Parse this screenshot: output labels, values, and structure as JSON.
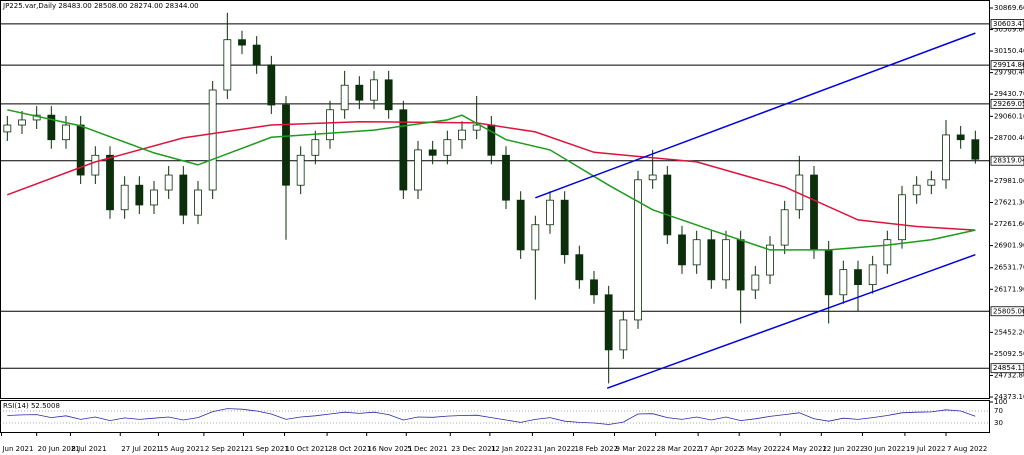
{
  "chart_data": {
    "type": "candlestick",
    "title": "JP225.var,Daily  28483.00 28508.00 28274.00 28344.00",
    "xlim": [
      -0.5,
      67
    ],
    "ylim": [
      24356.4,
      31003.2
    ],
    "yticks": [
      {
        "value": 30869.6,
        "label": "30869.60"
      },
      {
        "value": 30509.8,
        "label": "30509.80"
      },
      {
        "value": 30150.4,
        "label": "30150.40"
      },
      {
        "value": 29790.4,
        "label": "29790.40"
      },
      {
        "value": 29430.7,
        "label": "29430.70"
      },
      {
        "value": 29060.1,
        "label": "29060.10"
      },
      {
        "value": 28700.4,
        "label": "28700.40"
      },
      {
        "value": 27981,
        "label": "27981.00"
      },
      {
        "value": 27621.3,
        "label": "27621.30"
      },
      {
        "value": 27261.6,
        "label": "27261.60"
      },
      {
        "value": 26901.9,
        "label": "26901.90"
      },
      {
        "value": 26531.7,
        "label": "26531.70"
      },
      {
        "value": 26171.9,
        "label": "26171.90"
      },
      {
        "value": 25452.2,
        "label": "25452.20"
      },
      {
        "value": 25092.5,
        "label": "25092.50"
      },
      {
        "value": 24732.8,
        "label": "24732.80"
      },
      {
        "value": 24373.1,
        "label": "24373.10"
      }
    ],
    "xticks": [
      {
        "value": -0.4,
        "label": "Jun 2021"
      },
      {
        "value": 2,
        "label": "20 Jun 2021"
      },
      {
        "value": 4.3,
        "label": "8 Jul 2021"
      },
      {
        "value": 7.7,
        "label": "27 Jul 2021"
      },
      {
        "value": 10.3,
        "label": "15 Aug 2021"
      },
      {
        "value": 13.4,
        "label": "2 Sep 2021"
      },
      {
        "value": 16.1,
        "label": "21 Sep 2021"
      },
      {
        "value": 18.9,
        "label": "10 Oct 2021"
      },
      {
        "value": 21.8,
        "label": "28 Oct 2021"
      },
      {
        "value": 24.5,
        "label": "16 Nov 2021"
      },
      {
        "value": 27.2,
        "label": "5 Dec 2021"
      },
      {
        "value": 30.2,
        "label": "23 Dec 2021"
      },
      {
        "value": 32.9,
        "label": "12 Jan 2022"
      },
      {
        "value": 35.8,
        "label": "31 Jan 2022"
      },
      {
        "value": 38.6,
        "label": "18 Feb 2022"
      },
      {
        "value": 41.4,
        "label": "9 Mar 2022"
      },
      {
        "value": 44.2,
        "label": "28 Mar 2022"
      },
      {
        "value": 47.1,
        "label": "17 Apr 2022"
      },
      {
        "value": 49.9,
        "label": "5 May 2022"
      },
      {
        "value": 52.7,
        "label": "24 May 2022"
      },
      {
        "value": 55.5,
        "label": "12 Jun 2022"
      },
      {
        "value": 58.3,
        "label": "30 Jun 2022"
      },
      {
        "value": 61.2,
        "label": "19 Jul 2022"
      },
      {
        "value": 64,
        "label": "7 Aug 2022"
      }
    ],
    "open": [
      28800,
      28915,
      29000,
      29080,
      28670,
      28915,
      28080,
      28410,
      27500,
      27910,
      27580,
      27830,
      28080,
      27410,
      27830,
      29500,
      30340,
      30250,
      29920,
      29250,
      27910,
      28410,
      28670,
      29170,
      29580,
      29330,
      29670,
      29170,
      27830,
      28500,
      28410,
      28670,
      28830,
      28915,
      28410,
      27660,
      26830,
      27250,
      27660,
      26750,
      26330,
      26080,
      25160,
      25660,
      28000,
      28080,
      27080,
      26580,
      27000,
      26330,
      27000,
      26160,
      26410,
      26910,
      27500,
      28080,
      26830,
      26080,
      26500,
      26250,
      26580,
      27000,
      27750,
      27910,
      28000,
      28750,
      28670
    ],
    "high": [
      29065,
      29150,
      29230,
      29230,
      29065,
      29065,
      28560,
      28560,
      28060,
      28060,
      27980,
      28230,
      28230,
      27980,
      29650,
      30790,
      30490,
      30400,
      30070,
      29400,
      28560,
      28820,
      29320,
      29820,
      29730,
      29820,
      29820,
      29320,
      28650,
      28650,
      28820,
      28980,
      29400,
      29065,
      28560,
      27810,
      27400,
      27810,
      27810,
      26900,
      26480,
      26230,
      25810,
      28150,
      28500,
      28230,
      27230,
      27150,
      27150,
      27150,
      27150,
      26560,
      27060,
      27650,
      28400,
      28230,
      26980,
      26650,
      26650,
      26730,
      27150,
      27900,
      28060,
      28150,
      29000,
      28900,
      28820
    ],
    "low": [
      28650,
      28765,
      28850,
      28520,
      28520,
      27930,
      27930,
      27350,
      27350,
      27430,
      27430,
      27680,
      27260,
      27260,
      27680,
      29350,
      30100,
      29770,
      29100,
      27000,
      27760,
      28260,
      28520,
      29020,
      29180,
      29180,
      29020,
      27680,
      27680,
      28260,
      28260,
      28520,
      28680,
      28260,
      27510,
      26680,
      26000,
      27100,
      26600,
      26180,
      25930,
      24600,
      25010,
      25510,
      27850,
      26930,
      26430,
      26430,
      26180,
      26180,
      25600,
      26010,
      26260,
      26760,
      27350,
      26680,
      25600,
      25930,
      25800,
      26100,
      26430,
      26850,
      27600,
      27760,
      27850,
      28520,
      28270
    ],
    "close": [
      28915,
      29000,
      29080,
      28670,
      28915,
      28080,
      28410,
      27500,
      27910,
      27580,
      27830,
      28080,
      27410,
      27830,
      29500,
      30340,
      30250,
      29920,
      29250,
      27910,
      28410,
      28670,
      29170,
      29580,
      29330,
      29670,
      29170,
      27830,
      28500,
      28410,
      28670,
      28830,
      28915,
      28410,
      27660,
      26830,
      27250,
      27660,
      26750,
      26330,
      26080,
      25160,
      25660,
      28000,
      28080,
      27080,
      26580,
      27000,
      26330,
      27000,
      26160,
      26410,
      26910,
      27500,
      28080,
      26830,
      26080,
      26500,
      26250,
      26580,
      27000,
      27750,
      27910,
      28000,
      28750,
      28670,
      28344
    ],
    "up_color": "#ffffff",
    "down_color": "#0b2e0b",
    "color": "#0b2e0b",
    "levels": [
      {
        "value": 30603.47,
        "label": "30603.47"
      },
      {
        "value": 29914.86,
        "label": "29914.86"
      },
      {
        "value": 29269.05,
        "label": "29269.05"
      },
      {
        "value": 28319.04,
        "label": "28319.04"
      },
      {
        "value": 25805.06,
        "label": "25805.06"
      },
      {
        "value": 24854.13,
        "label": "24854.13"
      }
    ],
    "level_color": "#000000",
    "moving_averages": [
      {
        "color": "#dc143c",
        "x": [
          0,
          6,
          12,
          18,
          24,
          32,
          36,
          40,
          47,
          53,
          58,
          62,
          66
        ],
        "values": [
          27750,
          28300,
          28700,
          28915,
          28970,
          28950,
          28800,
          28460,
          28300,
          27880,
          27330,
          27220,
          27160
        ]
      },
      {
        "color": "#1e9a1e",
        "x": [
          0,
          5,
          10,
          13,
          18,
          25,
          30,
          31,
          34,
          37,
          41,
          44,
          48,
          52,
          56,
          60,
          63,
          66
        ],
        "values": [
          29170,
          28900,
          28450,
          28250,
          28710,
          28830,
          29000,
          29080,
          28670,
          28500,
          27910,
          27500,
          27160,
          26830,
          26830,
          26910,
          27000,
          27160
        ]
      }
    ],
    "trendlines": [
      {
        "color": "#0000dd",
        "x": [
          36,
          66
        ],
        "values": [
          27700,
          30450
        ]
      },
      {
        "color": "#0000dd",
        "x": [
          40.9,
          66
        ],
        "values": [
          24520,
          26750
        ]
      }
    ],
    "rsi": {
      "title": "RSI(14) 52.5008",
      "ylim": [
        0,
        100
      ],
      "yticks": [
        100,
        70,
        30
      ],
      "color": "#2a2aa8",
      "values": [
        55,
        57,
        58,
        48,
        54,
        42,
        50,
        38,
        47,
        42,
        46,
        50,
        40,
        48,
        68,
        78,
        76,
        70,
        60,
        42,
        50,
        54,
        60,
        66,
        62,
        66,
        58,
        40,
        50,
        49,
        53,
        55,
        56,
        48,
        40,
        32,
        42,
        48,
        36,
        32,
        30,
        25,
        33,
        60,
        61,
        48,
        42,
        50,
        40,
        50,
        38,
        44,
        52,
        58,
        64,
        44,
        36,
        46,
        42,
        48,
        55,
        64,
        66,
        67,
        74,
        70,
        52.5008
      ]
    }
  }
}
